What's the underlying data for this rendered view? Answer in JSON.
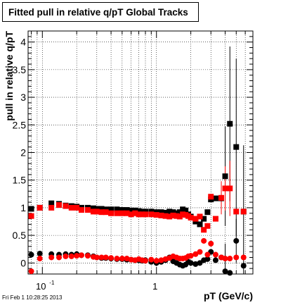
{
  "title": "Fitted pull in relative q/pT  Global Tracks",
  "timestamp": "Fri Feb  1 10:28:25 2013",
  "chart_data": {
    "type": "scatter",
    "xlabel": "pT (GeV/c)",
    "ylabel": "pull in relative q/pT",
    "xscale": "log",
    "xlim": [
      0.075,
      7
    ],
    "ylim": [
      -0.2,
      4.2
    ],
    "grid": true,
    "y_ticks": [
      "0",
      "0.5",
      "1",
      "1.5",
      "2",
      "2.5",
      "3",
      "3.5",
      "4"
    ],
    "x_ticks": [
      {
        "base": "10",
        "exp": "-1",
        "value": 0.1
      },
      {
        "base": "1",
        "exp": "",
        "value": 1
      }
    ],
    "series": [
      {
        "color": "#000000",
        "marker": "square",
        "points": [
          [
            0.08,
            0.98
          ],
          [
            0.095,
            1.0
          ],
          [
            0.12,
            1.08
          ],
          [
            0.14,
            1.07
          ],
          [
            0.16,
            1.04
          ],
          [
            0.18,
            1.03
          ],
          [
            0.2,
            1.02
          ],
          [
            0.22,
            1.0
          ],
          [
            0.25,
            1.0
          ],
          [
            0.28,
            0.99
          ],
          [
            0.3,
            0.98
          ],
          [
            0.33,
            0.98
          ],
          [
            0.36,
            0.97
          ],
          [
            0.4,
            0.97
          ],
          [
            0.45,
            0.97
          ],
          [
            0.5,
            0.96
          ],
          [
            0.55,
            0.96
          ],
          [
            0.6,
            0.95
          ],
          [
            0.65,
            0.95
          ],
          [
            0.7,
            0.94
          ],
          [
            0.75,
            0.93
          ],
          [
            0.8,
            0.93
          ],
          [
            0.9,
            0.93
          ],
          [
            1.0,
            0.92
          ],
          [
            1.1,
            0.92
          ],
          [
            1.2,
            0.91
          ],
          [
            1.3,
            0.93
          ],
          [
            1.4,
            0.92
          ],
          [
            1.5,
            0.9
          ],
          [
            1.6,
            0.92
          ],
          [
            1.7,
            0.97
          ],
          [
            1.8,
            0.95
          ],
          [
            1.9,
            0.88
          ],
          [
            2.0,
            0.84
          ],
          [
            2.2,
            0.75
          ],
          [
            2.4,
            0.7
          ],
          [
            2.6,
            0.8
          ],
          [
            2.8,
            0.92
          ],
          [
            3.0,
            1.15
          ],
          [
            3.3,
            1.17
          ],
          [
            3.7,
            1.17
          ],
          [
            4.0,
            1.57
          ],
          [
            4.4,
            2.52
          ],
          [
            5.0,
            2.1
          ],
          [
            5.8,
            0.93
          ]
        ],
        "errors": [
          [
            4.0,
            0.9
          ],
          [
            4.4,
            1.4
          ],
          [
            5.0,
            1.6
          ],
          [
            5.8,
            1.2
          ]
        ]
      },
      {
        "color": "#ff0000",
        "marker": "square",
        "points": [
          [
            0.08,
            0.85
          ],
          [
            0.095,
            1.0
          ],
          [
            0.12,
            1.0
          ],
          [
            0.14,
            1.05
          ],
          [
            0.16,
            1.03
          ],
          [
            0.18,
            1.0
          ],
          [
            0.2,
            1.0
          ],
          [
            0.22,
            0.96
          ],
          [
            0.25,
            0.96
          ],
          [
            0.28,
            0.93
          ],
          [
            0.3,
            0.93
          ],
          [
            0.33,
            0.92
          ],
          [
            0.36,
            0.92
          ],
          [
            0.4,
            0.9
          ],
          [
            0.45,
            0.9
          ],
          [
            0.5,
            0.9
          ],
          [
            0.55,
            0.9
          ],
          [
            0.6,
            0.88
          ],
          [
            0.65,
            0.9
          ],
          [
            0.7,
            0.88
          ],
          [
            0.75,
            0.88
          ],
          [
            0.8,
            0.88
          ],
          [
            0.9,
            0.88
          ],
          [
            1.0,
            0.87
          ],
          [
            1.1,
            0.86
          ],
          [
            1.2,
            0.85
          ],
          [
            1.3,
            0.84
          ],
          [
            1.4,
            0.86
          ],
          [
            1.5,
            0.85
          ],
          [
            1.6,
            0.84
          ],
          [
            1.7,
            0.88
          ],
          [
            1.8,
            0.87
          ],
          [
            1.9,
            0.85
          ],
          [
            2.0,
            0.82
          ],
          [
            2.2,
            0.8
          ],
          [
            2.4,
            0.84
          ],
          [
            2.6,
            0.6
          ],
          [
            2.8,
            0.67
          ],
          [
            3.0,
            1.2
          ],
          [
            3.3,
            0.8
          ],
          [
            3.7,
            1.18
          ],
          [
            4.0,
            1.35
          ],
          [
            4.4,
            1.35
          ],
          [
            5.0,
            0.93
          ],
          [
            5.8,
            0.93
          ]
        ],
        "errors": [
          [
            3.7,
            0.3
          ],
          [
            4.0,
            0.4
          ],
          [
            4.4,
            0.5
          ]
        ]
      },
      {
        "color": "#000000",
        "marker": "circle",
        "points": [
          [
            0.08,
            0.15
          ],
          [
            0.095,
            0.17
          ],
          [
            0.12,
            0.16
          ],
          [
            0.14,
            0.15
          ],
          [
            0.16,
            0.16
          ],
          [
            0.18,
            0.15
          ],
          [
            0.2,
            0.16
          ],
          [
            0.22,
            0.14
          ],
          [
            0.25,
            0.14
          ],
          [
            0.28,
            0.12
          ],
          [
            0.3,
            0.1
          ],
          [
            0.33,
            0.09
          ],
          [
            0.36,
            0.09
          ],
          [
            0.4,
            0.08
          ],
          [
            0.45,
            0.07
          ],
          [
            0.5,
            0.07
          ],
          [
            0.55,
            0.06
          ],
          [
            0.6,
            0.06
          ],
          [
            0.65,
            0.05
          ],
          [
            0.7,
            0.05
          ],
          [
            0.75,
            0.04
          ],
          [
            0.8,
            0.05
          ],
          [
            0.9,
            0.02
          ],
          [
            1.0,
            0.0
          ],
          [
            1.1,
            0.02
          ],
          [
            1.2,
            0.05
          ],
          [
            1.3,
            0.1
          ],
          [
            1.4,
            0.03
          ],
          [
            1.5,
            0.0
          ],
          [
            1.6,
            -0.03
          ],
          [
            1.7,
            -0.05
          ],
          [
            1.8,
            -0.03
          ],
          [
            1.9,
            0.02
          ],
          [
            2.0,
            0.0
          ],
          [
            2.2,
            -0.02
          ],
          [
            2.4,
            0.0
          ],
          [
            2.6,
            0.05
          ],
          [
            2.8,
            0.07
          ],
          [
            3.0,
            0.2
          ],
          [
            3.3,
            0.05
          ],
          [
            3.7,
            0.1
          ],
          [
            4.0,
            -0.15
          ],
          [
            4.4,
            -0.18
          ],
          [
            5.0,
            0.4
          ],
          [
            5.8,
            -0.05
          ]
        ],
        "errors": [
          [
            4.0,
            0.5
          ],
          [
            5.0,
            0.4
          ]
        ]
      },
      {
        "color": "#ff0000",
        "marker": "circle",
        "points": [
          [
            0.08,
            -0.15
          ],
          [
            0.095,
            0.08
          ],
          [
            0.12,
            0.1
          ],
          [
            0.14,
            0.1
          ],
          [
            0.16,
            0.12
          ],
          [
            0.18,
            0.12
          ],
          [
            0.2,
            0.13
          ],
          [
            0.22,
            0.14
          ],
          [
            0.25,
            0.13
          ],
          [
            0.28,
            0.11
          ],
          [
            0.3,
            0.1
          ],
          [
            0.33,
            0.1
          ],
          [
            0.36,
            0.1
          ],
          [
            0.4,
            0.09
          ],
          [
            0.45,
            0.08
          ],
          [
            0.5,
            0.08
          ],
          [
            0.55,
            0.08
          ],
          [
            0.6,
            0.06
          ],
          [
            0.65,
            0.05
          ],
          [
            0.7,
            0.07
          ],
          [
            0.75,
            0.05
          ],
          [
            0.8,
            0.04
          ],
          [
            0.9,
            0.06
          ],
          [
            1.0,
            0.04
          ],
          [
            1.1,
            0.05
          ],
          [
            1.2,
            0.07
          ],
          [
            1.3,
            0.09
          ],
          [
            1.4,
            0.12
          ],
          [
            1.5,
            0.1
          ],
          [
            1.6,
            0.08
          ],
          [
            1.7,
            0.08
          ],
          [
            1.8,
            0.09
          ],
          [
            1.9,
            0.12
          ],
          [
            2.0,
            0.13
          ],
          [
            2.2,
            0.16
          ],
          [
            2.4,
            0.2
          ],
          [
            2.6,
            0.4
          ],
          [
            2.8,
            0.15
          ],
          [
            3.0,
            0.35
          ],
          [
            3.3,
            0.15
          ],
          [
            3.7,
            0.1
          ],
          [
            4.0,
            0.08
          ],
          [
            4.4,
            0.08
          ],
          [
            5.0,
            0.1
          ],
          [
            5.8,
            0.1
          ]
        ],
        "errors": []
      }
    ]
  }
}
